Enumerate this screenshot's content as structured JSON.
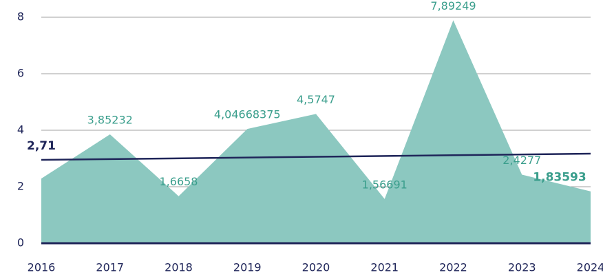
{
  "chart_data": {
    "type": "area",
    "categories": [
      "2016",
      "2017",
      "2018",
      "2019",
      "2020",
      "2021",
      "2022",
      "2023",
      "2024"
    ],
    "series": [
      {
        "color": "#8cc8c0",
        "values": [
          2.29,
          3.85232,
          1.6658,
          4.04668375,
          4.5747,
          1.56691,
          7.89249,
          2.4277,
          1.83593
        ],
        "value_labels": [
          null,
          "3,85232",
          "1,6658",
          "4,04668375",
          "4,5747",
          "1,56691",
          "7,89249",
          "2,4277",
          "1,83593"
        ]
      }
    ],
    "trend_line": {
      "values": [
        2.95,
        3.17
      ],
      "color": "#1f2559",
      "label": "2,71"
    },
    "ylim": [
      0,
      8
    ],
    "yticks": [
      0,
      2,
      4,
      6,
      8
    ],
    "grid": true
  }
}
